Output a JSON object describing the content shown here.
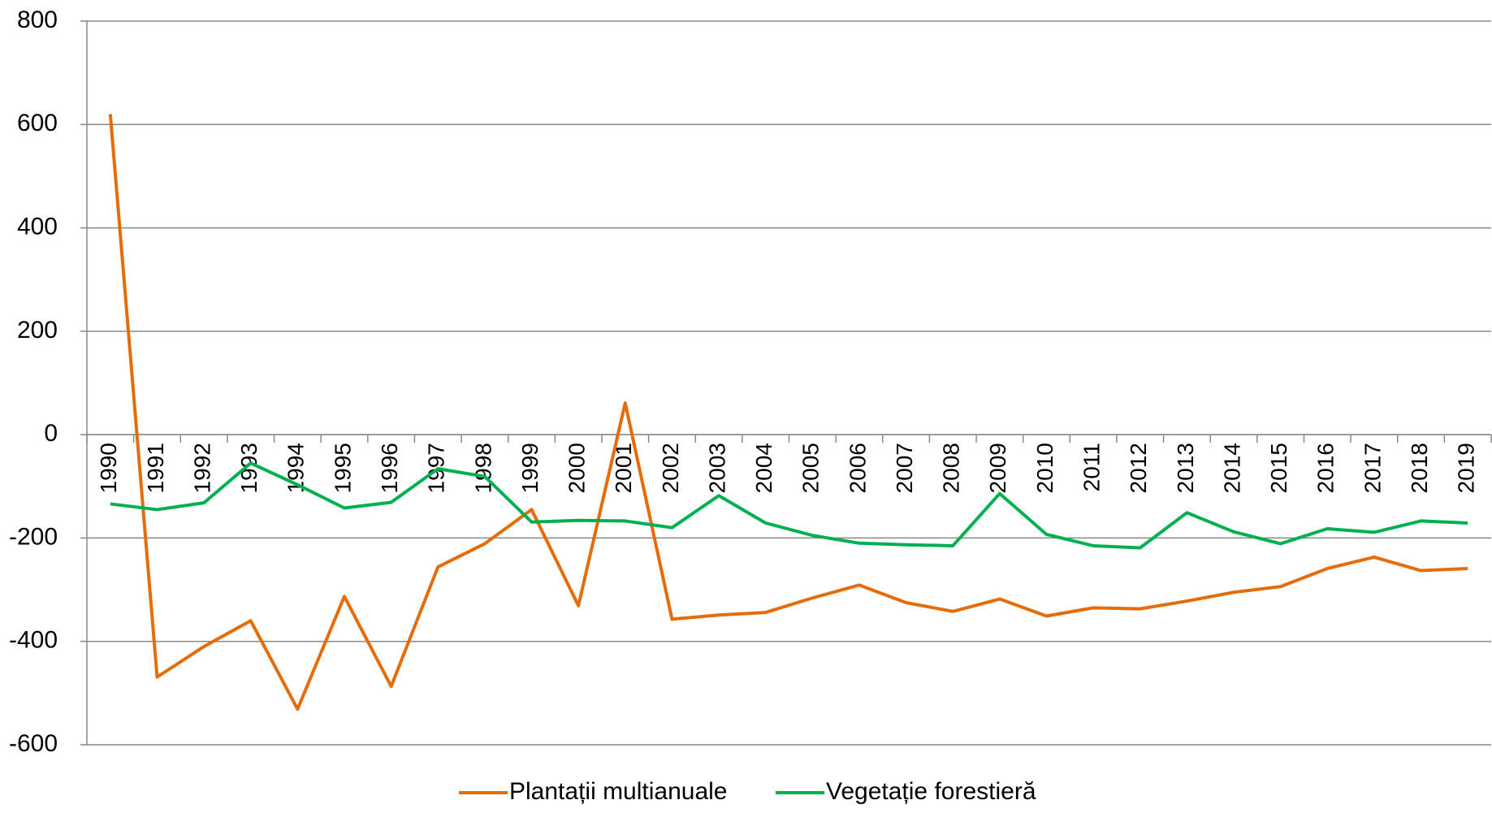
{
  "chart_data": {
    "type": "line",
    "categories": [
      "1990",
      "1991",
      "1992",
      "1993",
      "1994",
      "1995",
      "1996",
      "1997",
      "1998",
      "1999",
      "2000",
      "2001",
      "2002",
      "2003",
      "2004",
      "2005",
      "2006",
      "2007",
      "2008",
      "2009",
      "2010",
      "2011",
      "2012",
      "2013",
      "2014",
      "2015",
      "2016",
      "2017",
      "2018",
      "2019"
    ],
    "series": [
      {
        "name": "Plantații multianuale",
        "color": "#e46c0a",
        "values": [
          620,
          -469,
          -410,
          -360,
          -531,
          -313,
          -487,
          -256,
          -211,
          -145,
          -331,
          61,
          -357,
          -349,
          -344,
          -316,
          -291,
          -325,
          -342,
          -318,
          -351,
          -335,
          -337,
          -322,
          -305,
          -294,
          -259,
          -237,
          -263,
          -259
        ]
      },
      {
        "name": "Vegetație forestieră",
        "color": "#00b050",
        "values": [
          -134,
          -145,
          -132,
          -55,
          -97,
          -142,
          -131,
          -66,
          -81,
          -169,
          -166,
          -167,
          -180,
          -118,
          -171,
          -195,
          -210,
          -213,
          -215,
          -114,
          -193,
          -215,
          -219,
          -151,
          -188,
          -211,
          -182,
          -189,
          -167,
          -171
        ]
      }
    ],
    "ylim": [
      -600,
      800
    ],
    "yticks": [
      -600,
      -400,
      -200,
      0,
      200,
      400,
      600,
      800
    ],
    "grid": true,
    "legend": "bottom"
  }
}
